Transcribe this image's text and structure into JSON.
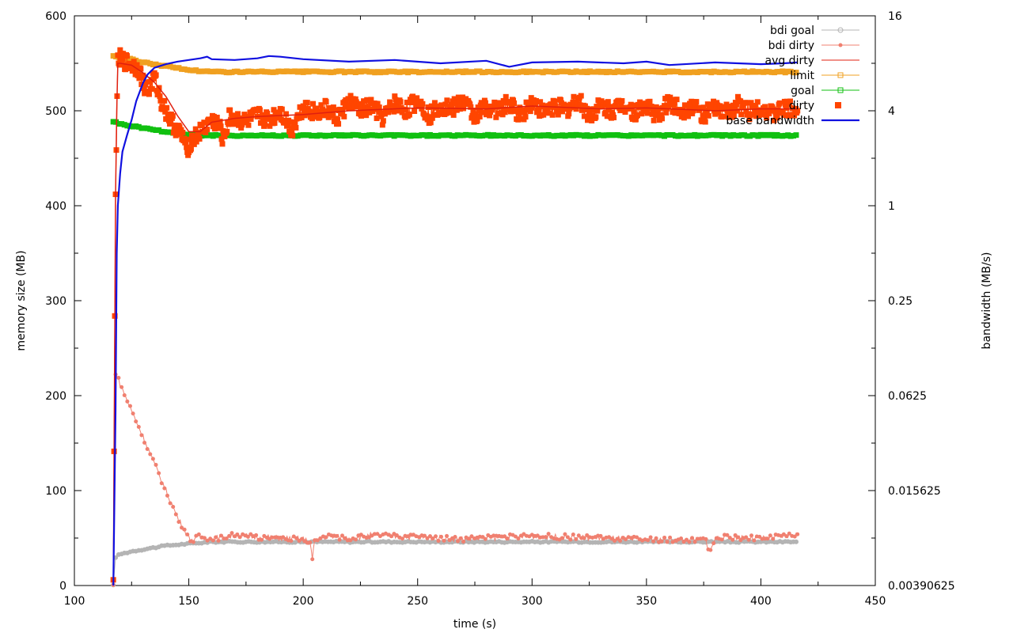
{
  "chart_data": {
    "type": "line",
    "title": "",
    "xlabel": "time (s)",
    "ylabel": "memory size (MB)",
    "y2label": "bandwidth (MB/s)",
    "xlim": [
      100,
      450
    ],
    "ylim": [
      0,
      600
    ],
    "y2scale": "log2",
    "y2lim": [
      0.00390625,
      16
    ],
    "x_ticks": [
      100,
      150,
      200,
      250,
      300,
      350,
      400,
      450
    ],
    "y_ticks": [
      0,
      100,
      200,
      300,
      400,
      500,
      600
    ],
    "y2_ticks": [
      {
        "value": 0.00390625,
        "label": "0.00390625"
      },
      {
        "value": 0.015625,
        "label": "0.015625"
      },
      {
        "value": 0.0625,
        "label": "0.0625"
      },
      {
        "value": 0.25,
        "label": "0.25"
      },
      {
        "value": 1,
        "label": "1"
      },
      {
        "value": 4,
        "label": "4"
      },
      {
        "value": 16,
        "label": "16"
      }
    ],
    "legend_position": "top-right",
    "series": [
      {
        "name": "bdi goal",
        "axis": "y",
        "color": "#b4b4b4",
        "marker": "circle",
        "x": [
          117,
          118,
          120,
          125,
          130,
          135,
          140,
          145,
          150,
          155,
          160,
          200,
          250,
          300,
          350,
          400,
          416
        ],
        "y": [
          0,
          30,
          33,
          36,
          38,
          40,
          42,
          43,
          44,
          45,
          46,
          46,
          46,
          46,
          46,
          46,
          46
        ]
      },
      {
        "name": "bdi dirty",
        "axis": "y",
        "color": "#f08070",
        "marker": "dot",
        "x": [
          117,
          118,
          120,
          125,
          130,
          135,
          140,
          145,
          150,
          152,
          155,
          160,
          170,
          180,
          190,
          200,
          203,
          204,
          205,
          210,
          220,
          230,
          250,
          270,
          300,
          330,
          350,
          376,
          377,
          378,
          380,
          390,
          400,
          410,
          416
        ],
        "y": [
          0,
          225,
          212,
          184,
          157,
          128,
          100,
          72,
          50,
          48,
          52,
          49,
          53,
          51,
          50,
          49,
          45,
          28,
          47,
          52,
          50,
          53,
          51,
          49,
          52,
          50,
          48,
          48,
          40,
          36,
          50,
          51,
          49,
          52,
          54
        ]
      },
      {
        "name": "avg dirty",
        "axis": "y",
        "color": "#e02010",
        "marker": "none",
        "x": [
          117,
          118,
          118.5,
          119,
          120,
          125,
          130,
          135,
          140,
          145,
          150,
          155,
          160,
          170,
          180,
          200,
          220,
          250,
          280,
          300,
          330,
          350,
          380,
          400,
          416
        ],
        "y": [
          0,
          410,
          500,
          550,
          550,
          548,
          540,
          530,
          515,
          495,
          478,
          478,
          488,
          492,
          494,
          496,
          500,
          503,
          502,
          505,
          502,
          503,
          500,
          502,
          502
        ]
      },
      {
        "name": "limit",
        "axis": "y",
        "color": "#f0a020",
        "marker": "square-open",
        "x": [
          117,
          120,
          125,
          130,
          135,
          140,
          145,
          150,
          155,
          160,
          170,
          200,
          250,
          300,
          350,
          400,
          416
        ],
        "y": [
          558,
          556,
          554,
          551,
          549,
          547,
          545,
          543,
          542,
          541,
          541,
          541,
          541,
          541,
          541,
          541,
          541
        ]
      },
      {
        "name": "goal",
        "axis": "y",
        "color": "#10c010",
        "marker": "square-open",
        "x": [
          117,
          120,
          125,
          130,
          135,
          140,
          145,
          150,
          155,
          160,
          170,
          200,
          250,
          300,
          350,
          400,
          416
        ],
        "y": [
          489,
          486,
          484,
          482,
          480,
          478,
          476,
          475,
          474,
          474,
          474,
          474,
          474,
          474,
          474,
          474,
          474
        ]
      },
      {
        "name": "dirty",
        "axis": "y",
        "color": "#ff4500",
        "marker": "square-filled",
        "x": [
          117,
          118,
          119,
          120,
          122,
          125,
          128,
          130,
          132,
          135,
          138,
          140,
          142,
          145,
          148,
          149,
          150,
          152,
          155,
          158,
          160,
          163,
          165,
          168,
          170,
          175,
          180,
          185,
          190,
          195,
          200,
          205,
          210,
          215,
          220,
          225,
          230,
          235,
          240,
          245,
          250,
          255,
          260,
          265,
          270,
          275,
          280,
          285,
          290,
          295,
          300,
          305,
          310,
          315,
          320,
          325,
          330,
          335,
          340,
          345,
          350,
          355,
          360,
          365,
          370,
          375,
          380,
          385,
          390,
          395,
          400,
          405,
          410,
          416
        ],
        "y": [
          0,
          420,
          550,
          555,
          552,
          548,
          545,
          530,
          520,
          535,
          510,
          500,
          490,
          480,
          470,
          453,
          465,
          470,
          478,
          485,
          490,
          486,
          470,
          495,
          492,
          488,
          495,
          490,
          500,
          480,
          505,
          498,
          502,
          492,
          510,
          500,
          505,
          492,
          508,
          500,
          512,
          495,
          506,
          502,
          510,
          494,
          505,
          500,
          508,
          495,
          510,
          498,
          506,
          500,
          512,
          495,
          505,
          500,
          508,
          498,
          506,
          494,
          510,
          500,
          505,
          496,
          502,
          498,
          506,
          500,
          505,
          496,
          502,
          500
        ]
      },
      {
        "name": "base bandwidth",
        "axis": "y2",
        "color": "#1010e0",
        "marker": "none",
        "x": [
          117,
          118,
          118.5,
          119,
          120,
          121,
          123,
          125,
          127,
          130,
          132,
          135,
          140,
          145,
          150,
          155,
          158,
          160,
          170,
          180,
          185,
          190,
          200,
          220,
          240,
          260,
          280,
          290,
          300,
          320,
          340,
          350,
          360,
          380,
          400,
          410,
          416
        ],
        "y": [
          0.0039,
          0.05,
          0.5,
          1.0,
          1.6,
          2.2,
          2.8,
          3.5,
          4.6,
          6.0,
          6.8,
          7.5,
          7.9,
          8.2,
          8.4,
          8.6,
          8.8,
          8.5,
          8.4,
          8.6,
          8.9,
          8.8,
          8.5,
          8.2,
          8.4,
          8.0,
          8.3,
          7.6,
          8.1,
          8.2,
          8.0,
          8.2,
          7.8,
          8.1,
          7.9,
          8.0,
          8.1
        ]
      }
    ]
  }
}
